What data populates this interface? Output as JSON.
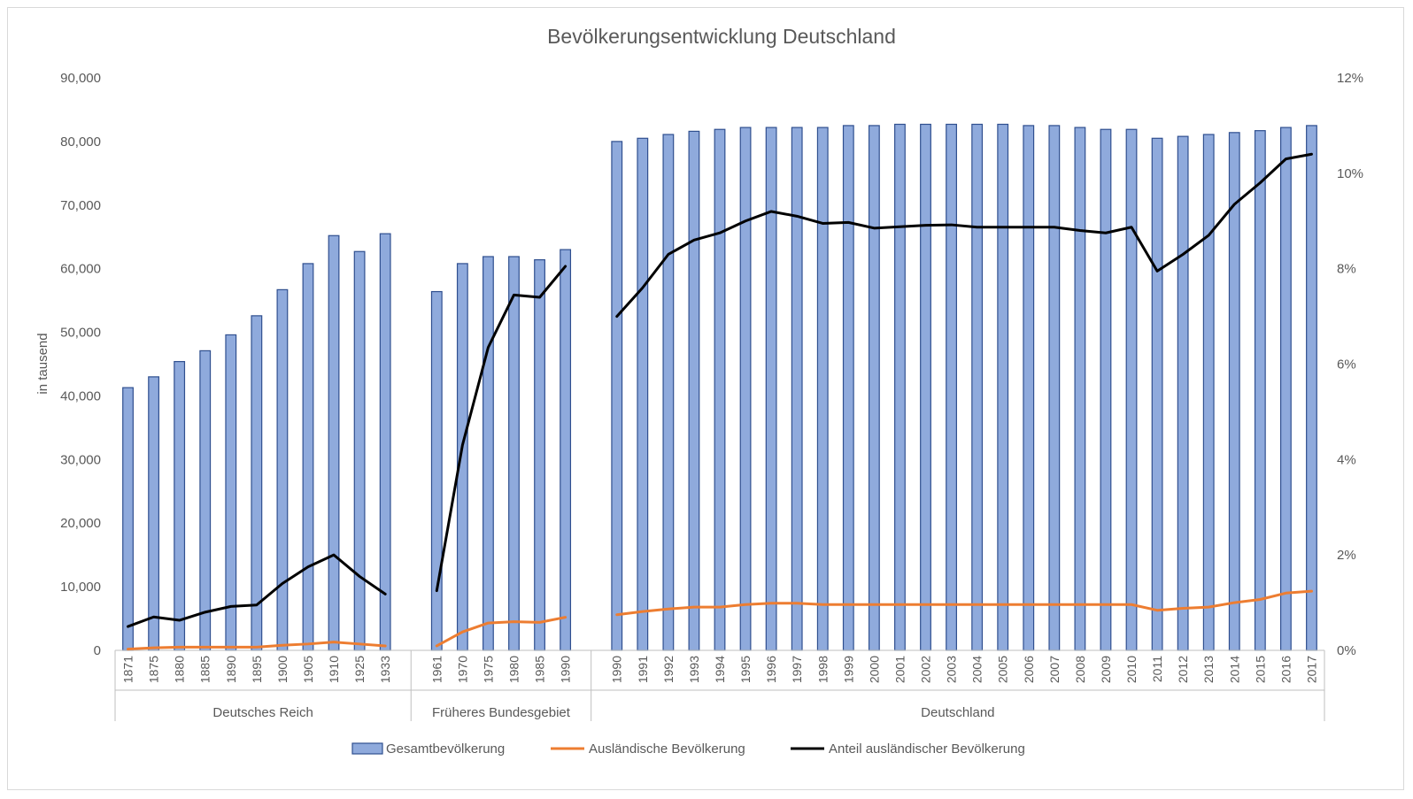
{
  "chart_data": {
    "type": "bar",
    "title": "Bevölkerungsentwicklung Deutschland",
    "ylabel": "in tausend",
    "ylim": [
      0,
      90000
    ],
    "y_ticks": [
      "0",
      "10,000",
      "20,000",
      "30,000",
      "40,000",
      "50,000",
      "60,000",
      "70,000",
      "80,000",
      "90,000"
    ],
    "y2lim": [
      0,
      12
    ],
    "y2_ticks": [
      "0%",
      "2%",
      "4%",
      "6%",
      "8%",
      "10%",
      "12%"
    ],
    "groups": [
      {
        "name": "Deutsches Reich",
        "categories": [
          "1871",
          "1875",
          "1880",
          "1885",
          "1890",
          "1895",
          "1900",
          "1905",
          "1910",
          "1925",
          "1933"
        ],
        "gesamt": [
          41300,
          43000,
          45400,
          47100,
          49600,
          52600,
          56700,
          60800,
          65200,
          62700,
          65500
        ],
        "auslaendisch": [
          200,
          400,
          500,
          500,
          500,
          500,
          800,
          1000,
          1300,
          1000,
          700
        ],
        "anteil": [
          0.5,
          0.7,
          0.63,
          0.8,
          0.92,
          0.95,
          1.4,
          1.75,
          2.0,
          1.55,
          1.18
        ]
      },
      {
        "name": "Früheres Bundesgebiet",
        "categories": [
          "1961",
          "1970",
          "1975",
          "1980",
          "1985",
          "1990"
        ],
        "gesamt": [
          56400,
          60800,
          61900,
          61900,
          61400,
          63000
        ],
        "auslaendisch": [
          700,
          2900,
          4300,
          4500,
          4400,
          5200
        ],
        "anteil": [
          1.25,
          4.3,
          6.35,
          7.45,
          7.4,
          8.05
        ]
      },
      {
        "name": "Deutschland",
        "categories": [
          "1990",
          "1991",
          "1992",
          "1993",
          "1994",
          "1995",
          "1996",
          "1997",
          "1998",
          "1999",
          "2000",
          "2001",
          "2002",
          "2003",
          "2004",
          "2005",
          "2006",
          "2007",
          "2008",
          "2009",
          "2010",
          "2011",
          "2012",
          "2013",
          "2014",
          "2015",
          "2016",
          "2017"
        ],
        "gesamt": [
          80000,
          80500,
          81100,
          81600,
          81900,
          82200,
          82200,
          82200,
          82200,
          82500,
          82500,
          82700,
          82700,
          82700,
          82700,
          82700,
          82500,
          82500,
          82200,
          81900,
          81900,
          80500,
          80800,
          81100,
          81400,
          81700,
          82200,
          82500
        ],
        "auslaendisch": [
          5600,
          6100,
          6500,
          6800,
          6800,
          7200,
          7400,
          7400,
          7200,
          7200,
          7200,
          7200,
          7200,
          7200,
          7200,
          7200,
          7200,
          7200,
          7200,
          7200,
          7200,
          6300,
          6600,
          6800,
          7500,
          8000,
          9000,
          9300
        ],
        "anteil": [
          7.0,
          7.6,
          8.3,
          8.6,
          8.75,
          9.0,
          9.2,
          9.1,
          8.95,
          8.97,
          8.85,
          8.88,
          8.91,
          8.92,
          8.87,
          8.87,
          8.87,
          8.87,
          8.8,
          8.75,
          8.87,
          7.95,
          8.3,
          8.7,
          9.35,
          9.8,
          10.3,
          10.4
        ]
      }
    ],
    "series": [
      {
        "name": "Gesamtbevölkerung",
        "type": "bar",
        "axis": "left",
        "color": "#8faadc",
        "stroke": "#2f4f8f"
      },
      {
        "name": "Ausländische Bevölkerung",
        "type": "line",
        "axis": "left",
        "color": "#ed7d31"
      },
      {
        "name": "Anteil ausländischer Bevölkerung",
        "type": "line",
        "axis": "right",
        "color": "#000000"
      }
    ],
    "legend": {
      "position": "bottom"
    },
    "grid": false
  }
}
